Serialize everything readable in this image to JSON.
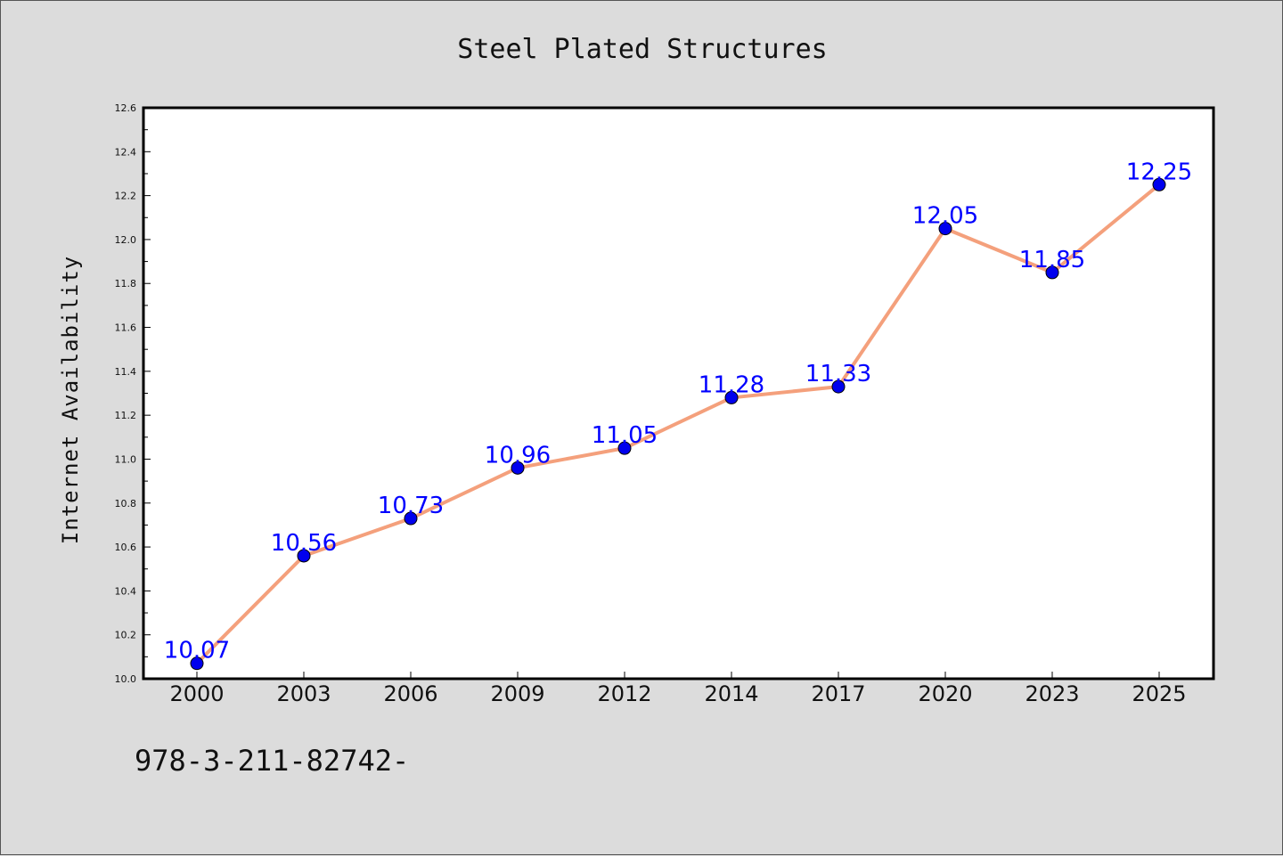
{
  "chart_data": {
    "type": "line",
    "title": "Steel Plated Structures",
    "xlabel": "",
    "ylabel": "Internet Availability",
    "categories": [
      "2000",
      "2003",
      "2006",
      "2009",
      "2012",
      "2014",
      "2017",
      "2020",
      "2023",
      "2025"
    ],
    "series": [
      {
        "values": [
          10.07,
          10.56,
          10.73,
          10.96,
          11.05,
          11.28,
          11.33,
          12.05,
          11.85,
          12.25
        ],
        "line_color": "#f4a07c",
        "marker_color": "#0000ee"
      }
    ],
    "data_labels": [
      "10.07",
      "10.56",
      "10.73",
      "10.96",
      "11.05",
      "11.28",
      "11.33",
      "12.05",
      "11.85",
      "12.25"
    ],
    "ylim": [
      10.0,
      12.6
    ],
    "yticks": [
      "10.0",
      "10.2",
      "10.4",
      "10.6",
      "10.8",
      "11.0",
      "11.2",
      "11.4",
      "11.6",
      "11.8",
      "12.0",
      "12.2",
      "12.4",
      "12.6"
    ],
    "grid": false,
    "label_color": "#0000ff"
  },
  "footer_text": "978-3-211-82742-"
}
